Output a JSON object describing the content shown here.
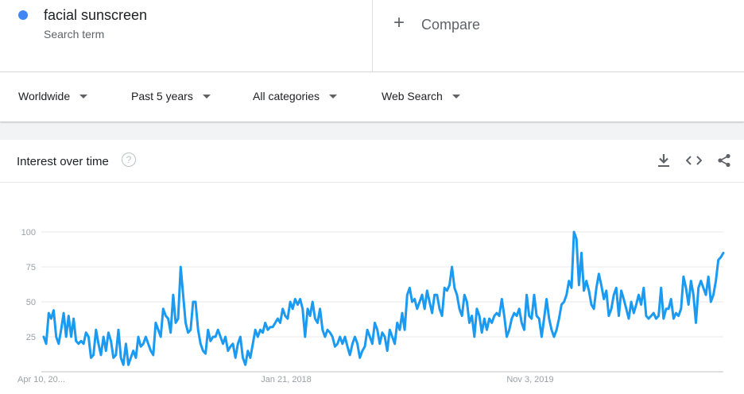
{
  "search_term": {
    "name": "facial sunscreen",
    "subtitle": "Search term",
    "color": "#4285f4"
  },
  "compare": {
    "label": "Compare"
  },
  "filters": {
    "region": "Worldwide",
    "time": "Past 5 years",
    "category": "All categories",
    "search_type": "Web Search"
  },
  "card": {
    "title": "Interest over time"
  },
  "icons": [
    "help-icon",
    "download-icon",
    "embed-icon",
    "share-icon"
  ],
  "chart_data": {
    "type": "line",
    "title": "",
    "xlabel": "",
    "ylabel": "",
    "ylim": [
      0,
      100
    ],
    "yticks": [
      25,
      50,
      75,
      100
    ],
    "x_tick_labels": [
      "Apr 10, 20...",
      "Jan 21, 2018",
      "Nov 3, 2019"
    ],
    "grid": true,
    "series": [
      {
        "name": "",
        "color": "#1a9af0",
        "values": [
          25,
          20,
          42,
          38,
          44,
          25,
          20,
          30,
          42,
          25,
          40,
          25,
          38,
          22,
          20,
          22,
          20,
          28,
          25,
          10,
          12,
          30,
          20,
          12,
          25,
          15,
          28,
          22,
          10,
          12,
          30,
          10,
          5,
          20,
          5,
          10,
          15,
          10,
          25,
          18,
          20,
          25,
          20,
          15,
          12,
          35,
          30,
          25,
          45,
          40,
          38,
          28,
          55,
          35,
          38,
          75,
          55,
          35,
          28,
          30,
          50,
          50,
          30,
          20,
          15,
          13,
          30,
          22,
          25,
          25,
          30,
          25,
          20,
          25,
          15,
          18,
          20,
          10,
          20,
          25,
          10,
          5,
          15,
          10,
          20,
          30,
          25,
          30,
          28,
          35,
          30,
          32,
          32,
          35,
          38,
          35,
          45,
          40,
          38,
          50,
          45,
          52,
          48,
          52,
          45,
          25,
          45,
          40,
          50,
          38,
          35,
          45,
          30,
          25,
          30,
          28,
          25,
          18,
          20,
          25,
          20,
          25,
          18,
          12,
          20,
          25,
          20,
          10,
          15,
          18,
          30,
          25,
          20,
          35,
          30,
          20,
          28,
          25,
          15,
          30,
          25,
          20,
          35,
          30,
          42,
          30,
          55,
          60,
          50,
          52,
          45,
          50,
          55,
          45,
          58,
          50,
          42,
          55,
          55,
          45,
          40,
          60,
          58,
          62,
          75,
          60,
          55,
          45,
          40,
          55,
          50,
          35,
          40,
          25,
          45,
          40,
          28,
          38,
          30,
          38,
          35,
          40,
          42,
          40,
          52,
          40,
          25,
          30,
          38,
          42,
          40,
          45,
          35,
          30,
          55,
          40,
          38,
          55,
          40,
          38,
          25,
          38,
          52,
          38,
          30,
          25,
          30,
          38,
          48,
          50,
          55,
          65,
          60,
          100,
          95,
          62,
          85,
          58,
          65,
          58,
          48,
          45,
          60,
          70,
          62,
          52,
          58,
          40,
          45,
          55,
          60,
          40,
          58,
          52,
          45,
          38,
          50,
          42,
          48,
          55,
          48,
          60,
          40,
          38,
          40,
          42,
          38,
          40,
          60,
          38,
          45,
          45,
          52,
          38,
          42,
          40,
          45,
          68,
          60,
          48,
          65,
          55,
          35,
          60,
          65,
          60,
          55,
          68,
          50,
          55,
          65,
          80,
          82,
          85
        ],
        "_": null
      }
    ]
  }
}
